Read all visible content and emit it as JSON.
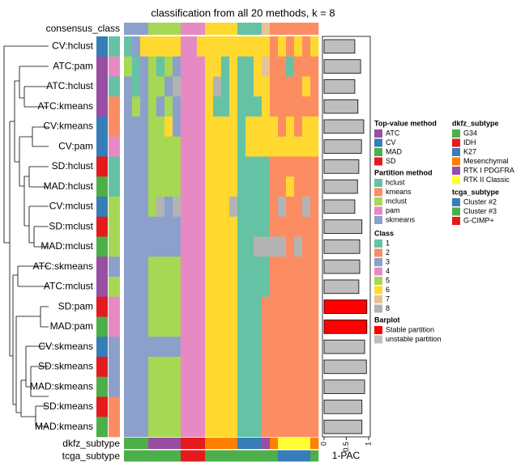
{
  "title": "classification from all 20 methods, k = 8",
  "consensus_label": "consensus_class",
  "consensus_class": [
    3,
    3,
    3,
    5,
    5,
    5,
    5,
    4,
    4,
    4,
    6,
    6,
    6,
    6,
    1,
    1,
    1,
    7,
    2,
    2,
    2,
    2,
    2,
    2
  ],
  "rows": [
    {
      "label": "CV:hclust",
      "top_value_method": "CV",
      "partition_method": "hclust",
      "classes": [
        1,
        3,
        6,
        6,
        6,
        6,
        6,
        4,
        4,
        6,
        6,
        6,
        6,
        6,
        6,
        6,
        6,
        6,
        2,
        6,
        2,
        6,
        2,
        6
      ],
      "one_minus_pac": 0.69,
      "bar_color": "#bebebe"
    },
    {
      "label": "ATC:pam",
      "top_value_method": "ATC",
      "partition_method": "pam",
      "classes": [
        5,
        1,
        3,
        5,
        1,
        5,
        3,
        4,
        4,
        4,
        6,
        6,
        1,
        6,
        1,
        1,
        6,
        7,
        2,
        2,
        1,
        2,
        2,
        2
      ],
      "one_minus_pac": 0.82,
      "bar_color": "#bebebe"
    },
    {
      "label": "ATC:hclust",
      "top_value_method": "ATC",
      "partition_method": "hclust",
      "classes": [
        3,
        1,
        3,
        5,
        5,
        3,
        8,
        4,
        4,
        4,
        6,
        8,
        1,
        6,
        1,
        1,
        6,
        6,
        2,
        2,
        2,
        2,
        6,
        2
      ],
      "one_minus_pac": 0.69,
      "bar_color": "#bebebe"
    },
    {
      "label": "ATC:kmeans",
      "top_value_method": "ATC",
      "partition_method": "kmeans",
      "classes": [
        3,
        5,
        3,
        5,
        3,
        5,
        3,
        4,
        4,
        4,
        6,
        1,
        1,
        6,
        1,
        1,
        1,
        6,
        2,
        2,
        2,
        2,
        2,
        2
      ],
      "one_minus_pac": 0.76,
      "bar_color": "#bebebe"
    },
    {
      "label": "CV:kmeans",
      "top_value_method": "CV",
      "partition_method": "kmeans",
      "classes": [
        3,
        3,
        3,
        5,
        5,
        6,
        3,
        4,
        4,
        4,
        6,
        6,
        6,
        6,
        1,
        6,
        6,
        6,
        6,
        2,
        6,
        2,
        6,
        6
      ],
      "one_minus_pac": 0.89,
      "bar_color": "#bebebe"
    },
    {
      "label": "CV:pam",
      "top_value_method": "CV",
      "partition_method": "pam",
      "classes": [
        3,
        3,
        3,
        5,
        5,
        5,
        5,
        4,
        4,
        4,
        6,
        6,
        6,
        6,
        1,
        6,
        6,
        6,
        6,
        6,
        6,
        6,
        6,
        6
      ],
      "one_minus_pac": 0.84,
      "bar_color": "#bebebe"
    },
    {
      "label": "SD:hclust",
      "top_value_method": "SD",
      "partition_method": "hclust",
      "classes": [
        3,
        3,
        3,
        5,
        5,
        5,
        5,
        4,
        4,
        4,
        6,
        6,
        6,
        6,
        1,
        1,
        1,
        1,
        2,
        2,
        2,
        2,
        2,
        2
      ],
      "one_minus_pac": 0.78,
      "bar_color": "#bebebe"
    },
    {
      "label": "MAD:hclust",
      "top_value_method": "MAD",
      "partition_method": "hclust",
      "classes": [
        3,
        3,
        3,
        5,
        5,
        5,
        5,
        4,
        4,
        4,
        6,
        6,
        6,
        6,
        1,
        1,
        1,
        1,
        2,
        2,
        6,
        2,
        2,
        2
      ],
      "one_minus_pac": 0.75,
      "bar_color": "#bebebe"
    },
    {
      "label": "CV:mclust",
      "top_value_method": "CV",
      "partition_method": "mclust",
      "classes": [
        3,
        3,
        3,
        5,
        8,
        3,
        8,
        4,
        4,
        4,
        6,
        6,
        6,
        8,
        1,
        1,
        1,
        1,
        2,
        8,
        2,
        2,
        8,
        2
      ],
      "one_minus_pac": 0.69,
      "bar_color": "#bebebe"
    },
    {
      "label": "SD:mclust",
      "top_value_method": "SD",
      "partition_method": "mclust",
      "classes": [
        3,
        3,
        3,
        3,
        3,
        3,
        3,
        4,
        4,
        4,
        6,
        6,
        6,
        6,
        1,
        1,
        1,
        1,
        2,
        2,
        2,
        2,
        2,
        2
      ],
      "one_minus_pac": 0.85,
      "bar_color": "#bebebe"
    },
    {
      "label": "MAD:mclust",
      "top_value_method": "MAD",
      "partition_method": "mclust",
      "classes": [
        3,
        3,
        3,
        3,
        3,
        3,
        3,
        4,
        4,
        4,
        6,
        6,
        6,
        6,
        1,
        1,
        8,
        8,
        8,
        8,
        2,
        8,
        2,
        2
      ],
      "one_minus_pac": 0.8,
      "bar_color": "#bebebe"
    },
    {
      "label": "ATC:skmeans",
      "top_value_method": "ATC",
      "partition_method": "skmeans",
      "classes": [
        3,
        3,
        3,
        5,
        5,
        5,
        5,
        4,
        4,
        4,
        6,
        6,
        6,
        6,
        1,
        1,
        1,
        1,
        2,
        2,
        2,
        2,
        2,
        2
      ],
      "one_minus_pac": 0.8,
      "bar_color": "#bebebe"
    },
    {
      "label": "ATC:mclust",
      "top_value_method": "ATC",
      "partition_method": "mclust",
      "classes": [
        3,
        3,
        3,
        5,
        5,
        5,
        5,
        4,
        4,
        4,
        6,
        6,
        6,
        6,
        1,
        1,
        1,
        1,
        2,
        2,
        2,
        2,
        2,
        2
      ],
      "one_minus_pac": 0.78,
      "bar_color": "#bebebe"
    },
    {
      "label": "SD:pam",
      "top_value_method": "SD",
      "partition_method": "pam",
      "classes": [
        3,
        3,
        3,
        5,
        5,
        5,
        5,
        4,
        4,
        4,
        6,
        6,
        6,
        6,
        1,
        1,
        1,
        2,
        2,
        2,
        2,
        2,
        2,
        2
      ],
      "one_minus_pac": 0.96,
      "bar_color": "#ff0000"
    },
    {
      "label": "MAD:pam",
      "top_value_method": "MAD",
      "partition_method": "pam",
      "classes": [
        3,
        3,
        3,
        5,
        5,
        5,
        5,
        4,
        4,
        4,
        6,
        6,
        6,
        6,
        1,
        1,
        1,
        2,
        2,
        2,
        2,
        2,
        2,
        2
      ],
      "one_minus_pac": 0.96,
      "bar_color": "#ff0000"
    },
    {
      "label": "CV:skmeans",
      "top_value_method": "CV",
      "partition_method": "skmeans",
      "classes": [
        3,
        3,
        3,
        3,
        3,
        3,
        3,
        4,
        4,
        4,
        6,
        6,
        6,
        6,
        1,
        1,
        1,
        2,
        2,
        2,
        2,
        2,
        2,
        2
      ],
      "one_minus_pac": 0.91,
      "bar_color": "#bebebe"
    },
    {
      "label": "SD:skmeans",
      "top_value_method": "SD",
      "partition_method": "skmeans",
      "classes": [
        3,
        3,
        3,
        5,
        5,
        5,
        5,
        4,
        4,
        4,
        6,
        6,
        6,
        6,
        1,
        1,
        1,
        2,
        2,
        2,
        2,
        2,
        2,
        2
      ],
      "one_minus_pac": 0.95,
      "bar_color": "#bebebe"
    },
    {
      "label": "MAD:skmeans",
      "top_value_method": "MAD",
      "partition_method": "skmeans",
      "classes": [
        3,
        3,
        3,
        5,
        5,
        5,
        5,
        4,
        4,
        4,
        6,
        6,
        6,
        6,
        1,
        1,
        1,
        2,
        2,
        2,
        2,
        2,
        2,
        2
      ],
      "one_minus_pac": 0.91,
      "bar_color": "#bebebe"
    },
    {
      "label": "SD:kmeans",
      "top_value_method": "SD",
      "partition_method": "kmeans",
      "classes": [
        3,
        3,
        3,
        5,
        5,
        5,
        5,
        4,
        4,
        4,
        6,
        6,
        6,
        6,
        1,
        1,
        1,
        2,
        2,
        2,
        2,
        2,
        2,
        2
      ],
      "one_minus_pac": 0.85,
      "bar_color": "#bebebe"
    },
    {
      "label": "MAD:kmeans",
      "top_value_method": "MAD",
      "partition_method": "kmeans",
      "classes": [
        3,
        3,
        3,
        5,
        5,
        5,
        5,
        4,
        4,
        4,
        6,
        6,
        6,
        6,
        1,
        1,
        1,
        2,
        2,
        2,
        2,
        2,
        2,
        2
      ],
      "one_minus_pac": 0.85,
      "bar_color": "#bebebe"
    }
  ],
  "annotations": [
    {
      "label": "dkfz_subtype",
      "values": [
        "G34",
        "G34",
        "G34",
        "RTK I PDGFRA",
        "RTK I PDGFRA",
        "RTK I PDGFRA",
        "RTK I PDGFRA",
        "IDH",
        "IDH",
        "IDH",
        "Mesenchymal",
        "Mesenchymal",
        "Mesenchymal",
        "Mesenchymal",
        "K27",
        "K27",
        "K27",
        "RTK I PDGFRA",
        "Mesenchymal",
        "RTK II Classic",
        "RTK II Classic",
        "RTK II Classic",
        "RTK II Classic",
        "Mesenchymal"
      ]
    },
    {
      "label": "tcga_subtype",
      "values": [
        "Cluster #3",
        "Cluster #3",
        "Cluster #3",
        "Cluster #3",
        "Cluster #3",
        "Cluster #3",
        "Cluster #3",
        "G-CIMP+",
        "G-CIMP+",
        "G-CIMP+",
        "Cluster #3",
        "Cluster #3",
        "Cluster #3",
        "Cluster #3",
        "Cluster #3",
        "Cluster #3",
        "Cluster #3",
        "Cluster #3",
        "Cluster #3",
        "Cluster #2",
        "Cluster #2",
        "Cluster #2",
        "Cluster #2",
        "Cluster #3"
      ]
    }
  ],
  "barplot": {
    "label": "1-PAC",
    "xlim": [
      0,
      1
    ],
    "xticks": [
      0,
      0.5,
      1
    ]
  },
  "legends": [
    {
      "title": "Top-value method",
      "items": [
        {
          "name": "ATC",
          "color": "#984EA3"
        },
        {
          "name": "CV",
          "color": "#377EB8"
        },
        {
          "name": "MAD",
          "color": "#4DAF4A"
        },
        {
          "name": "SD",
          "color": "#E41A1C"
        }
      ]
    },
    {
      "title": "Partition method",
      "items": [
        {
          "name": "hclust",
          "color": "#66C2A5"
        },
        {
          "name": "kmeans",
          "color": "#FC8D62"
        },
        {
          "name": "mclust",
          "color": "#A6D854"
        },
        {
          "name": "pam",
          "color": "#E78AC3"
        },
        {
          "name": "skmeans",
          "color": "#8DA0CB"
        }
      ]
    },
    {
      "title": "Class",
      "items": [
        {
          "name": "1",
          "color": "#66C2A5"
        },
        {
          "name": "2",
          "color": "#FC8D62"
        },
        {
          "name": "3",
          "color": "#8DA0CB"
        },
        {
          "name": "4",
          "color": "#E78AC3"
        },
        {
          "name": "5",
          "color": "#A6D854"
        },
        {
          "name": "6",
          "color": "#FFD92F"
        },
        {
          "name": "7",
          "color": "#E5C494"
        },
        {
          "name": "8",
          "color": "#B3B3B3"
        }
      ]
    },
    {
      "title": "Barplot",
      "items": [
        {
          "name": "Stable partition",
          "color": "#ff0000"
        },
        {
          "name": "unstable partition",
          "color": "#bebebe"
        }
      ]
    },
    {
      "title": "dkfz_subtype",
      "items": [
        {
          "name": "G34",
          "color": "#4DAF4A"
        },
        {
          "name": "IDH",
          "color": "#E41A1C"
        },
        {
          "name": "K27",
          "color": "#377EB8"
        },
        {
          "name": "Mesenchymal",
          "color": "#FF7F00"
        },
        {
          "name": "RTK I PDGFRA",
          "color": "#984EA3"
        },
        {
          "name": "RTK II Classic",
          "color": "#FFFF33"
        }
      ]
    },
    {
      "title": "tcga_subtype",
      "items": [
        {
          "name": "Cluster #2",
          "color": "#377EB8"
        },
        {
          "name": "Cluster #3",
          "color": "#4DAF4A"
        },
        {
          "name": "G-CIMP+",
          "color": "#E41A1C"
        }
      ]
    }
  ]
}
